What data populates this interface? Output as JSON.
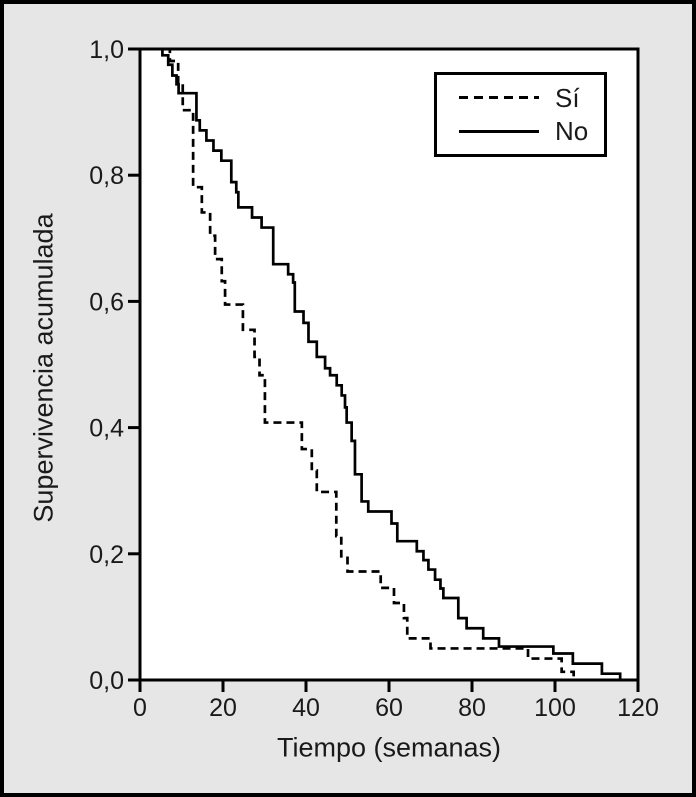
{
  "figure": {
    "background_color": "#e6e6e6",
    "plot_background_color": "#ffffff",
    "border_color": "#000000",
    "line_color": "#000000",
    "text_color": "#1a1a1a"
  },
  "legend": {
    "position": "top-right",
    "items": [
      {
        "label": "Sí",
        "style": "dashed"
      },
      {
        "label": "No",
        "style": "solid"
      }
    ]
  },
  "chart_data": {
    "type": "line",
    "subtype": "kaplan-meier-step",
    "title": "",
    "xlabel": "Tiempo (semanas)",
    "ylabel": "Supervivencia acumulada",
    "xlim": [
      0,
      120
    ],
    "ylim": [
      0.0,
      1.0
    ],
    "grid": false,
    "legend_position": "top-right",
    "x_ticks": [
      0,
      20,
      40,
      60,
      80,
      100,
      120
    ],
    "x_tick_labels": [
      "0",
      "20",
      "40",
      "60",
      "80",
      "100",
      "120"
    ],
    "y_ticks": [
      0.0,
      0.2,
      0.4,
      0.6,
      0.8,
      1.0
    ],
    "y_tick_labels": [
      "0,0",
      "0,2",
      "0,4",
      "0,6",
      "0,8",
      "1,0"
    ],
    "series": [
      {
        "name": "Sí",
        "line_style": "dashed",
        "color": "#000000",
        "points": [
          [
            0,
            1.0
          ],
          [
            7.2,
            0.981
          ],
          [
            9.2,
            0.942
          ],
          [
            10.3,
            0.903
          ],
          [
            12.8,
            0.781
          ],
          [
            14.9,
            0.741
          ],
          [
            16.9,
            0.704
          ],
          [
            18.1,
            0.667
          ],
          [
            19.7,
            0.632
          ],
          [
            20.5,
            0.595
          ],
          [
            24.8,
            0.555
          ],
          [
            27.6,
            0.512
          ],
          [
            28.8,
            0.483
          ],
          [
            30.1,
            0.408
          ],
          [
            39.0,
            0.366
          ],
          [
            41.4,
            0.332
          ],
          [
            42.6,
            0.298
          ],
          [
            47.3,
            0.228
          ],
          [
            48.5,
            0.196
          ],
          [
            50.0,
            0.172
          ],
          [
            58.0,
            0.146
          ],
          [
            61.2,
            0.122
          ],
          [
            63.6,
            0.098
          ],
          [
            64.4,
            0.066
          ],
          [
            70.0,
            0.05
          ],
          [
            93.5,
            0.034
          ],
          [
            101.6,
            0.013
          ],
          [
            104.5,
            0.0
          ]
        ]
      },
      {
        "name": "No",
        "line_style": "solid",
        "color": "#000000",
        "points": [
          [
            0,
            1.0
          ],
          [
            5.4,
            0.99
          ],
          [
            6.8,
            0.975
          ],
          [
            7.8,
            0.958
          ],
          [
            8.8,
            0.944
          ],
          [
            9.3,
            0.93
          ],
          [
            13.6,
            0.887
          ],
          [
            14.4,
            0.871
          ],
          [
            16.0,
            0.855
          ],
          [
            17.7,
            0.839
          ],
          [
            19.6,
            0.823
          ],
          [
            22.0,
            0.789
          ],
          [
            23.2,
            0.773
          ],
          [
            23.7,
            0.749
          ],
          [
            27.0,
            0.733
          ],
          [
            29.3,
            0.717
          ],
          [
            32.1,
            0.659
          ],
          [
            35.7,
            0.643
          ],
          [
            36.9,
            0.63
          ],
          [
            37.3,
            0.584
          ],
          [
            39.4,
            0.566
          ],
          [
            40.6,
            0.536
          ],
          [
            42.6,
            0.512
          ],
          [
            44.6,
            0.494
          ],
          [
            45.8,
            0.483
          ],
          [
            47.4,
            0.467
          ],
          [
            48.6,
            0.451
          ],
          [
            49.4,
            0.432
          ],
          [
            49.8,
            0.408
          ],
          [
            51.0,
            0.379
          ],
          [
            51.8,
            0.326
          ],
          [
            53.4,
            0.283
          ],
          [
            55.0,
            0.267
          ],
          [
            60.6,
            0.248
          ],
          [
            62.0,
            0.22
          ],
          [
            66.7,
            0.204
          ],
          [
            68.3,
            0.19
          ],
          [
            69.5,
            0.175
          ],
          [
            71.1,
            0.159
          ],
          [
            72.4,
            0.145
          ],
          [
            73.1,
            0.13
          ],
          [
            76.7,
            0.098
          ],
          [
            78.7,
            0.082
          ],
          [
            82.7,
            0.066
          ],
          [
            86.5,
            0.053
          ],
          [
            99.6,
            0.042
          ],
          [
            104.3,
            0.026
          ],
          [
            111.3,
            0.01
          ],
          [
            115.7,
            0.0
          ]
        ]
      }
    ]
  }
}
